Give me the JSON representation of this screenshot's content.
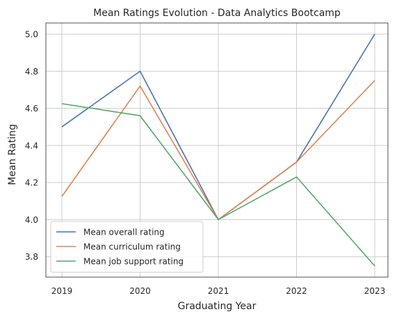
{
  "chart_data": {
    "type": "line",
    "title": "Mean Ratings Evolution - Data Analytics Bootcamp",
    "xlabel": "Graduating Year",
    "ylabel": "Mean Rating",
    "x": [
      "2019",
      "2020",
      "2021",
      "2022",
      "2023"
    ],
    "yticks": [
      "3.8",
      "4.0",
      "4.2",
      "4.4",
      "4.6",
      "4.8",
      "5.0"
    ],
    "ylim": [
      3.69,
      5.06
    ],
    "grid": true,
    "legend_position": "lower-left",
    "series": [
      {
        "name": "Mean overall rating",
        "color": "#4c72b0",
        "values": [
          4.5,
          4.8,
          4.0,
          4.31,
          5.0
        ]
      },
      {
        "name": "Mean curriculum rating",
        "color": "#dd8452",
        "values": [
          4.125,
          4.72,
          4.0,
          4.31,
          4.75
        ]
      },
      {
        "name": "Mean job support rating",
        "color": "#55a868",
        "values": [
          4.625,
          4.56,
          4.0,
          4.23,
          3.75
        ]
      }
    ]
  }
}
